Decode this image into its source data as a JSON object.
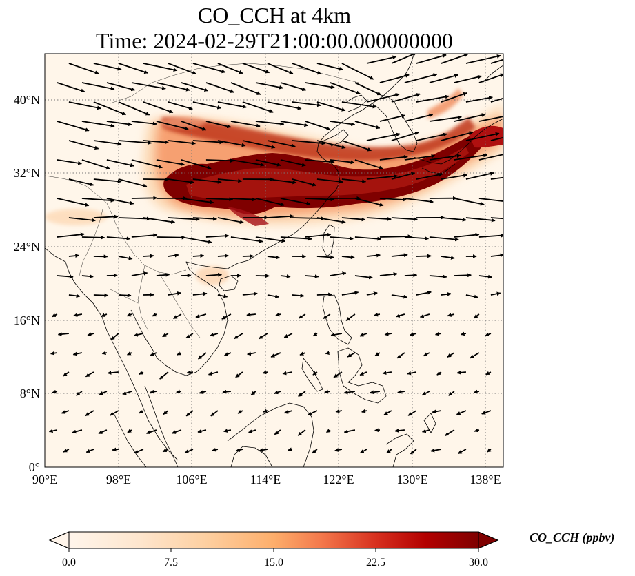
{
  "chart_data": {
    "type": "heatmap",
    "title_line1": "CO_CCH at 4km",
    "title_line2": "Time: 2024-02-29T21:00:00.000000000",
    "variable": "CO_CCH",
    "level": "4km",
    "time": "2024-02-29T21:00:00.000000000",
    "xlim": [
      90,
      140
    ],
    "ylim": [
      0,
      45
    ],
    "x_ticks": [
      {
        "value": 90,
        "label": "90°E"
      },
      {
        "value": 98,
        "label": "98°E"
      },
      {
        "value": 106,
        "label": "106°E"
      },
      {
        "value": 114,
        "label": "114°E"
      },
      {
        "value": 122,
        "label": "122°E"
      },
      {
        "value": 130,
        "label": "130°E"
      },
      {
        "value": 138,
        "label": "138°E"
      }
    ],
    "y_ticks": [
      {
        "value": 0,
        "label": "0°"
      },
      {
        "value": 8,
        "label": "8°N"
      },
      {
        "value": 16,
        "label": "16°N"
      },
      {
        "value": 24,
        "label": "24°N"
      },
      {
        "value": 32,
        "label": "32°N"
      },
      {
        "value": 40,
        "label": "40°N"
      }
    ],
    "grid": true,
    "colorbar": {
      "label": "CO_CCH (ppbv)",
      "min": 0.0,
      "max": 30.0,
      "extend": "both",
      "ticks": [
        {
          "value": 0.0,
          "label": "0.0"
        },
        {
          "value": 7.5,
          "label": "7.5"
        },
        {
          "value": 15.0,
          "label": "15.0"
        },
        {
          "value": 22.5,
          "label": "22.5"
        },
        {
          "value": 30.0,
          "label": "30.0"
        }
      ],
      "colormap": [
        "#fff5eb",
        "#fdd9b0",
        "#fdae6b",
        "#f16913",
        "#d94801",
        "#a50f15",
        "#7f0000"
      ]
    },
    "plume_core": [
      {
        "lon": 102.5,
        "lat": 30.0
      },
      {
        "lon": 104.5,
        "lat": 31.5
      },
      {
        "lon": 107.0,
        "lat": 32.0
      },
      {
        "lon": 110.0,
        "lat": 33.0
      },
      {
        "lon": 113.0,
        "lat": 33.5
      },
      {
        "lon": 116.0,
        "lat": 33.0
      },
      {
        "lon": 119.0,
        "lat": 32.5
      },
      {
        "lon": 122.0,
        "lat": 31.5
      },
      {
        "lon": 126.0,
        "lat": 31.0
      },
      {
        "lon": 130.0,
        "lat": 31.5
      },
      {
        "lon": 134.0,
        "lat": 33.5
      },
      {
        "lon": 137.5,
        "lat": 36.0
      }
    ],
    "wind_field": {
      "north_of_25N": "strong westerly to north-westerly flow",
      "tropics": "weak north-easterly flow"
    }
  }
}
